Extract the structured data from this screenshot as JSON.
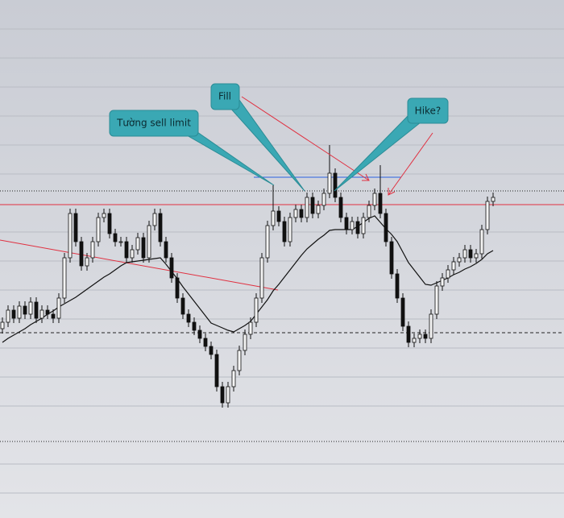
{
  "chart_data": {
    "type": "candlestick",
    "ylim": [
      0,
      643
    ],
    "open": [
      235,
      243,
      258,
      248,
      263,
      253,
      268,
      248,
      258,
      253,
      248,
      273,
      323,
      378,
      343,
      313,
      323,
      343,
      373,
      378,
      353,
      343,
      343,
      323,
      333,
      348,
      323,
      363,
      378,
      343,
      323,
      298,
      273,
      253,
      243,
      233,
      223,
      213,
      203,
      163,
      143,
      163,
      183,
      208,
      228,
      243,
      273,
      323,
      363,
      381,
      368,
      343,
      373,
      383,
      373,
      398,
      378,
      388,
      403,
      428,
      398,
      373,
      358,
      368,
      353,
      373,
      388,
      403,
      378,
      343,
      303,
      273,
      238,
      218,
      223,
      228,
      223,
      253,
      288,
      298,
      308,
      318,
      323,
      333,
      323,
      328,
      358,
      393
    ],
    "high": [
      249,
      264,
      264,
      269,
      269,
      274,
      274,
      264,
      264,
      259,
      279,
      329,
      384,
      384,
      349,
      329,
      349,
      379,
      384,
      384,
      359,
      349,
      349,
      339,
      354,
      354,
      369,
      384,
      384,
      349,
      329,
      304,
      279,
      259,
      249,
      239,
      229,
      219,
      209,
      169,
      169,
      189,
      214,
      234,
      249,
      279,
      329,
      369,
      413,
      387,
      374,
      379,
      389,
      389,
      404,
      404,
      394,
      409,
      463,
      434,
      404,
      379,
      374,
      374,
      379,
      394,
      409,
      438,
      384,
      349,
      309,
      279,
      244,
      229,
      234,
      234,
      259,
      294,
      304,
      314,
      324,
      329,
      339,
      339,
      334,
      364,
      399,
      404
    ],
    "low": [
      229,
      237,
      242,
      242,
      247,
      247,
      242,
      242,
      247,
      242,
      242,
      267,
      317,
      337,
      307,
      307,
      317,
      337,
      367,
      347,
      337,
      337,
      317,
      317,
      327,
      317,
      317,
      357,
      337,
      317,
      292,
      267,
      247,
      237,
      227,
      217,
      207,
      197,
      157,
      137,
      137,
      157,
      177,
      202,
      222,
      237,
      267,
      317,
      357,
      362,
      337,
      337,
      367,
      367,
      367,
      372,
      372,
      382,
      397,
      392,
      367,
      352,
      352,
      347,
      347,
      367,
      382,
      372,
      337,
      297,
      267,
      232,
      212,
      212,
      217,
      217,
      217,
      247,
      282,
      292,
      302,
      312,
      317,
      317,
      317,
      322,
      352,
      387
    ],
    "close": [
      243,
      258,
      248,
      263,
      253,
      268,
      248,
      258,
      253,
      248,
      273,
      323,
      378,
      343,
      313,
      323,
      343,
      373,
      378,
      353,
      343,
      343,
      323,
      333,
      348,
      323,
      363,
      378,
      343,
      323,
      298,
      273,
      253,
      243,
      233,
      223,
      213,
      203,
      163,
      143,
      163,
      183,
      208,
      228,
      243,
      273,
      323,
      363,
      381,
      368,
      343,
      373,
      383,
      373,
      398,
      378,
      388,
      403,
      428,
      398,
      373,
      358,
      368,
      353,
      373,
      388,
      403,
      378,
      343,
      303,
      273,
      238,
      218,
      223,
      228,
      223,
      253,
      288,
      298,
      308,
      318,
      323,
      333,
      323,
      328,
      358,
      393,
      398
    ],
    "moving_average": [
      218,
      223,
      227,
      231,
      235,
      240,
      244,
      248,
      253,
      257,
      262,
      266,
      270,
      274,
      279,
      284,
      289,
      294,
      299,
      303,
      308,
      313,
      317,
      318,
      319,
      320,
      321,
      322,
      323,
      315,
      306,
      297,
      287,
      278,
      269,
      260,
      251,
      242,
      239,
      236,
      233,
      231,
      235,
      239,
      244,
      253,
      262,
      271,
      282,
      290,
      299,
      308,
      317,
      326,
      334,
      340,
      346,
      351,
      357,
      358,
      358,
      358,
      358,
      362,
      367,
      372,
      375,
      367,
      359,
      352,
      343,
      330,
      317,
      308,
      299,
      290,
      289,
      292,
      295,
      298,
      302,
      305,
      309,
      312,
      316,
      321,
      328,
      332
    ],
    "annotations": [
      "Tường sell limit",
      "Fill",
      "Hike?"
    ]
  }
}
